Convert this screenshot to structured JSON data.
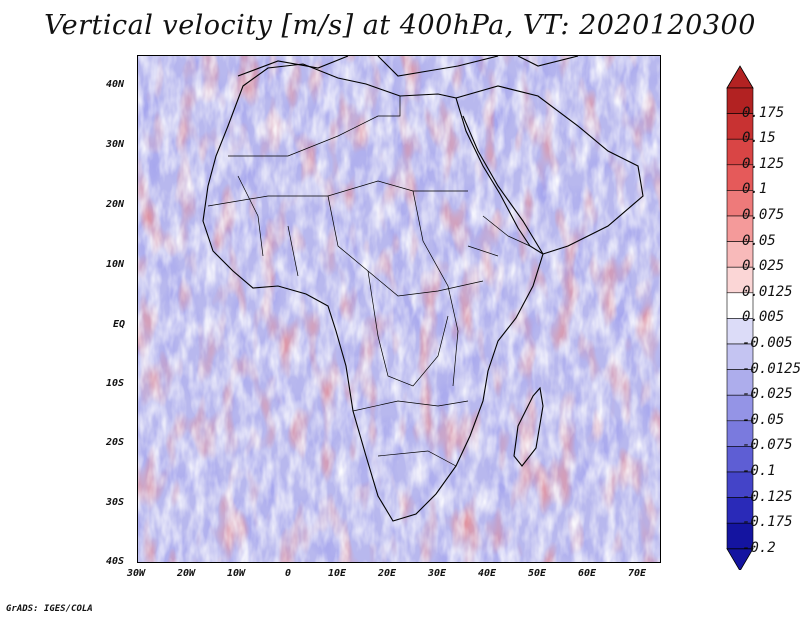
{
  "title": "Vertical velocity [m/s] at 400hPa, VT: 2020120300",
  "credit": "GrADS: IGES/COLA",
  "map": {
    "region": "Africa",
    "lon_range": [
      -30,
      75
    ],
    "lat_range": [
      -40,
      45
    ],
    "variable": "Vertical velocity",
    "units": "m/s",
    "level": "400hPa",
    "valid_time": "2020120300"
  },
  "axes": {
    "y_ticks": [
      "40N",
      "30N",
      "20N",
      "10N",
      "EQ",
      "10S",
      "20S",
      "30S",
      "40S"
    ],
    "x_ticks": [
      "30W",
      "20W",
      "10W",
      "0",
      "10E",
      "20E",
      "30E",
      "40E",
      "50E",
      "60E",
      "70E"
    ]
  },
  "colorbar": {
    "labels": [
      "0.175",
      "0.15",
      "0.125",
      "0.1",
      "0.075",
      "0.05",
      "0.025",
      "0.0125",
      "0.005",
      "-0.005",
      "-0.0125",
      "-0.025",
      "-0.05",
      "-0.075",
      "-0.1",
      "-0.125",
      "-0.175",
      "-0.2"
    ],
    "colors": [
      "#b22222",
      "#c83232",
      "#d94545",
      "#e55a5a",
      "#ee7a7a",
      "#f49a9a",
      "#f8baba",
      "#fbd6d6",
      "#ffffff",
      "#dcdcf8",
      "#c4c4f2",
      "#adadec",
      "#9494e6",
      "#7a7ade",
      "#5e5ed4",
      "#4444c8",
      "#2a2ab8",
      "#1414a0"
    ]
  }
}
